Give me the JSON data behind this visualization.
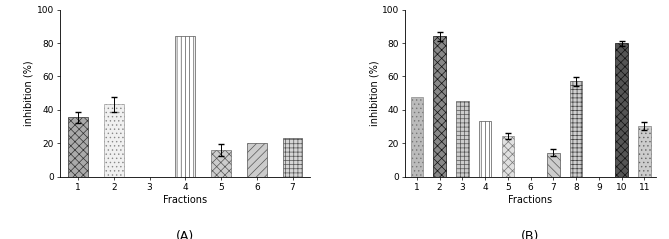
{
  "chart_A": {
    "categories": [
      1,
      2,
      3,
      4,
      5,
      6,
      7
    ],
    "values": [
      35.5,
      43.5,
      0,
      84,
      16,
      20.5,
      23.5
    ],
    "errors": [
      3.5,
      4.5,
      0,
      0,
      3.5,
      0,
      0
    ],
    "xlabel": "Fractions",
    "ylabel": "inhibition (%)",
    "title": "(A)",
    "ylim": [
      0,
      100
    ],
    "yticks": [
      0,
      20,
      40,
      60,
      80,
      100
    ]
  },
  "chart_B": {
    "categories": [
      1,
      2,
      3,
      4,
      5,
      6,
      7,
      8,
      9,
      10,
      11
    ],
    "values": [
      48,
      84,
      45.5,
      33.5,
      24.5,
      0,
      14.5,
      57,
      0,
      80,
      30.5
    ],
    "errors": [
      0,
      2.5,
      0,
      0,
      2,
      0,
      2,
      2.5,
      0,
      1.5,
      2.5
    ],
    "xlabel": "Fractions",
    "ylabel": "inhibition (%)",
    "title": "(B)",
    "ylim": [
      0,
      100
    ],
    "yticks": [
      0,
      20,
      40,
      60,
      80,
      100
    ]
  },
  "bar_width": 0.55,
  "title_fontsize": 9,
  "label_fontsize": 7,
  "tick_fontsize": 6.5
}
